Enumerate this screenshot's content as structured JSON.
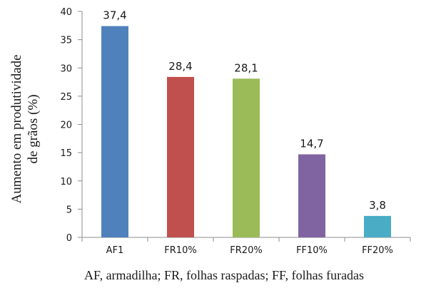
{
  "chart_data": {
    "type": "bar",
    "categories": [
      "AF1",
      "FR10%",
      "FR20%",
      "FF10%",
      "FF20%"
    ],
    "values": [
      37.4,
      28.4,
      28.1,
      14.7,
      3.8
    ],
    "value_labels": [
      "37,4",
      "28,4",
      "28,1",
      "14,7",
      "3,8"
    ],
    "bar_colors": [
      "#4f81bd",
      "#c0504d",
      "#9bbb59",
      "#8064a2",
      "#4bacc6"
    ],
    "ylabel_lines": [
      "Aumento em produtividade",
      "de grãos (%)"
    ],
    "ylim": [
      0,
      40
    ],
    "yticks": [
      0,
      5,
      10,
      15,
      20,
      25,
      30,
      35,
      40
    ],
    "grid": false,
    "legend": "none"
  },
  "caption": "AF, armadilha; FR, folhas raspadas; FF, folhas furadas"
}
